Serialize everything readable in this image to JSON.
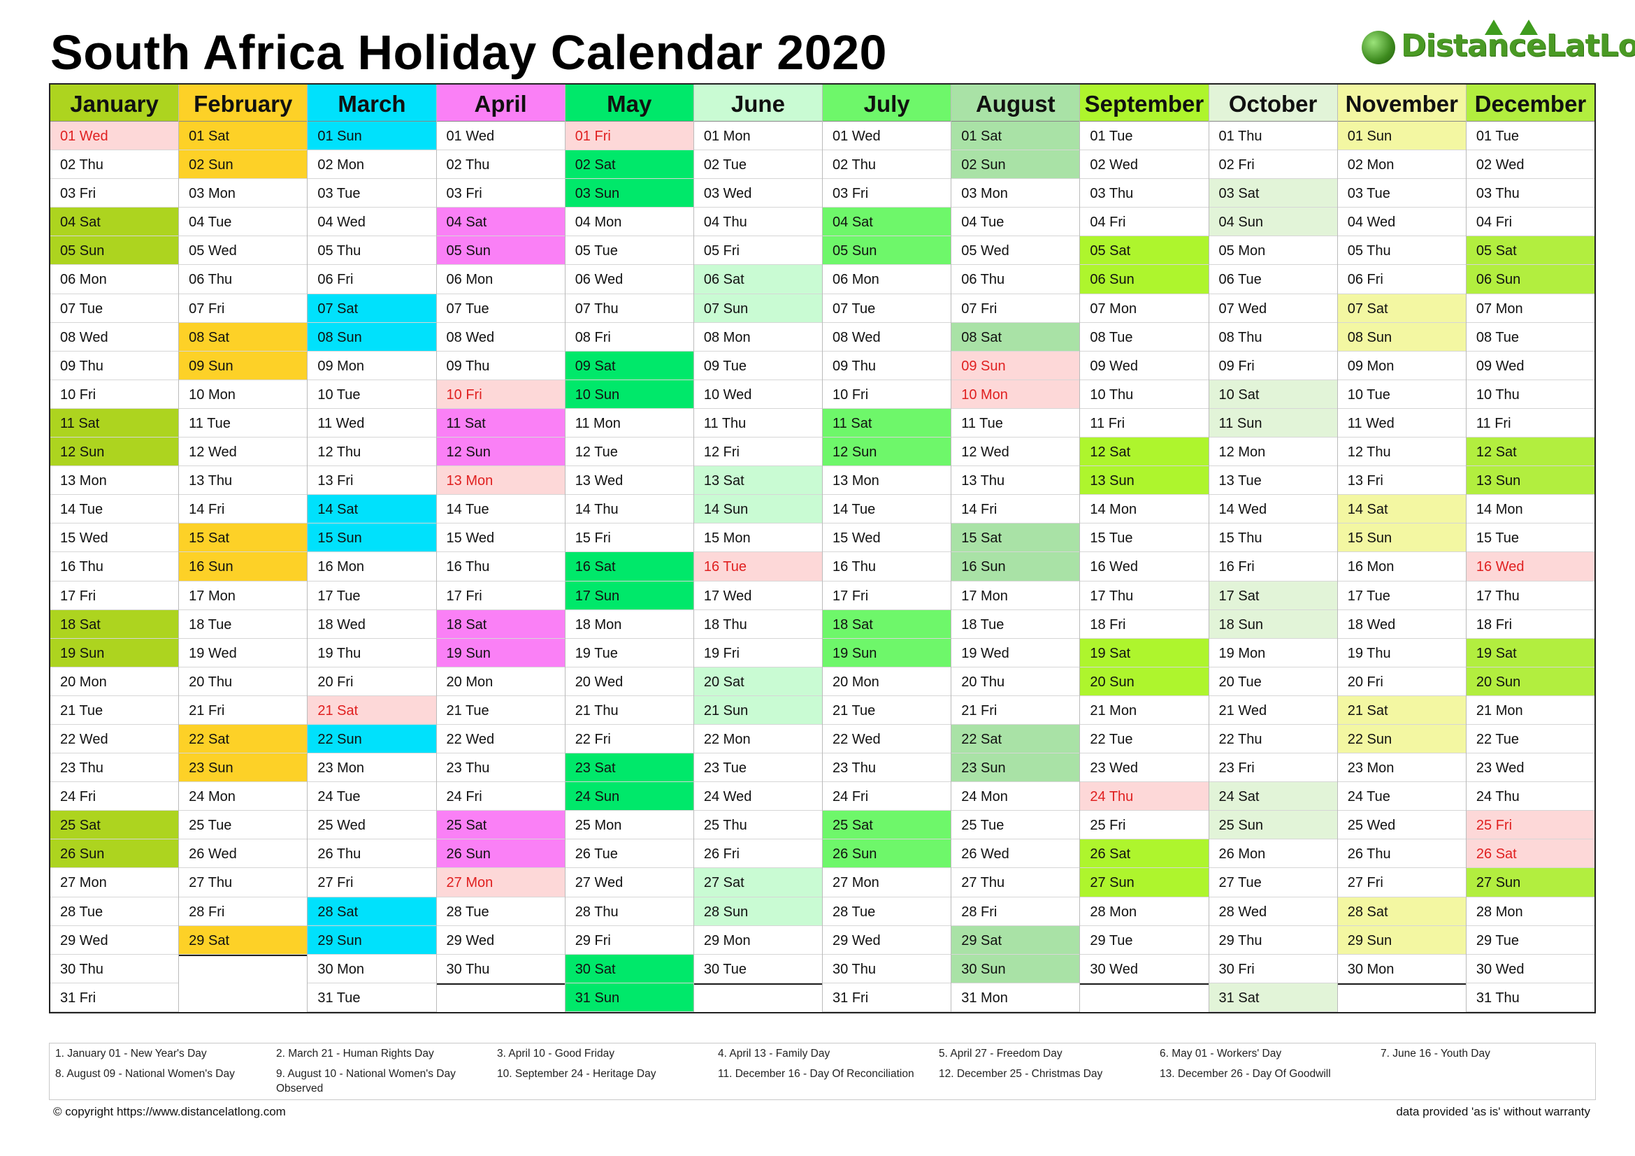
{
  "title": "South Africa Holiday Calendar 2020",
  "logo_text": "DistanceLatLong",
  "months": [
    {
      "name": "January",
      "color": "#add41f",
      "first_dow": 3,
      "days": 31
    },
    {
      "name": "February",
      "color": "#fdd127",
      "first_dow": 6,
      "days": 29
    },
    {
      "name": "March",
      "color": "#00e1fc",
      "first_dow": 0,
      "days": 31
    },
    {
      "name": "April",
      "color": "#fa80f6",
      "first_dow": 3,
      "days": 30
    },
    {
      "name": "May",
      "color": "#00e86a",
      "first_dow": 5,
      "days": 31
    },
    {
      "name": "June",
      "color": "#c9fbd3",
      "first_dow": 1,
      "days": 30
    },
    {
      "name": "July",
      "color": "#6ef76a",
      "first_dow": 3,
      "days": 31
    },
    {
      "name": "August",
      "color": "#a9e2a6",
      "first_dow": 6,
      "days": 31
    },
    {
      "name": "September",
      "color": "#aef52d",
      "first_dow": 2,
      "days": 30
    },
    {
      "name": "October",
      "color": "#e2f4d8",
      "first_dow": 4,
      "days": 31
    },
    {
      "name": "November",
      "color": "#f3f7a2",
      "first_dow": 0,
      "days": 30
    },
    {
      "name": "December",
      "color": "#b2ee3f",
      "first_dow": 2,
      "days": 31
    }
  ],
  "weekday_abbr": [
    "Sun",
    "Mon",
    "Tue",
    "Wed",
    "Thu",
    "Fri",
    "Sat"
  ],
  "holiday_color": "#fdd8d8",
  "holidays": {
    "January": [
      1
    ],
    "March": [
      21
    ],
    "April": [
      10,
      13,
      27
    ],
    "May": [
      1
    ],
    "June": [
      16
    ],
    "August": [
      9,
      10
    ],
    "September": [
      24
    ],
    "December": [
      16,
      25,
      26
    ]
  },
  "legend": [
    "1. January 01 - New Year's Day",
    "2. March 21 - Human Rights Day",
    "3. April 10 - Good Friday",
    "4. April 13 - Family Day",
    "5. April 27 - Freedom Day",
    "6. May 01 - Workers' Day",
    "7. June 16 - Youth Day",
    "8. August 09 - National Women's Day",
    "9. August 10 - National Women's Day Observed",
    "10. September 24 - Heritage Day",
    "11. December 16 - Day Of Reconciliation",
    "12. December 25 - Christmas Day",
    "13. December 26 - Day Of Goodwill"
  ],
  "footer": {
    "copyright": "© copyright https://www.distancelatlong.com",
    "disclaimer": "data provided 'as is' without warranty"
  }
}
